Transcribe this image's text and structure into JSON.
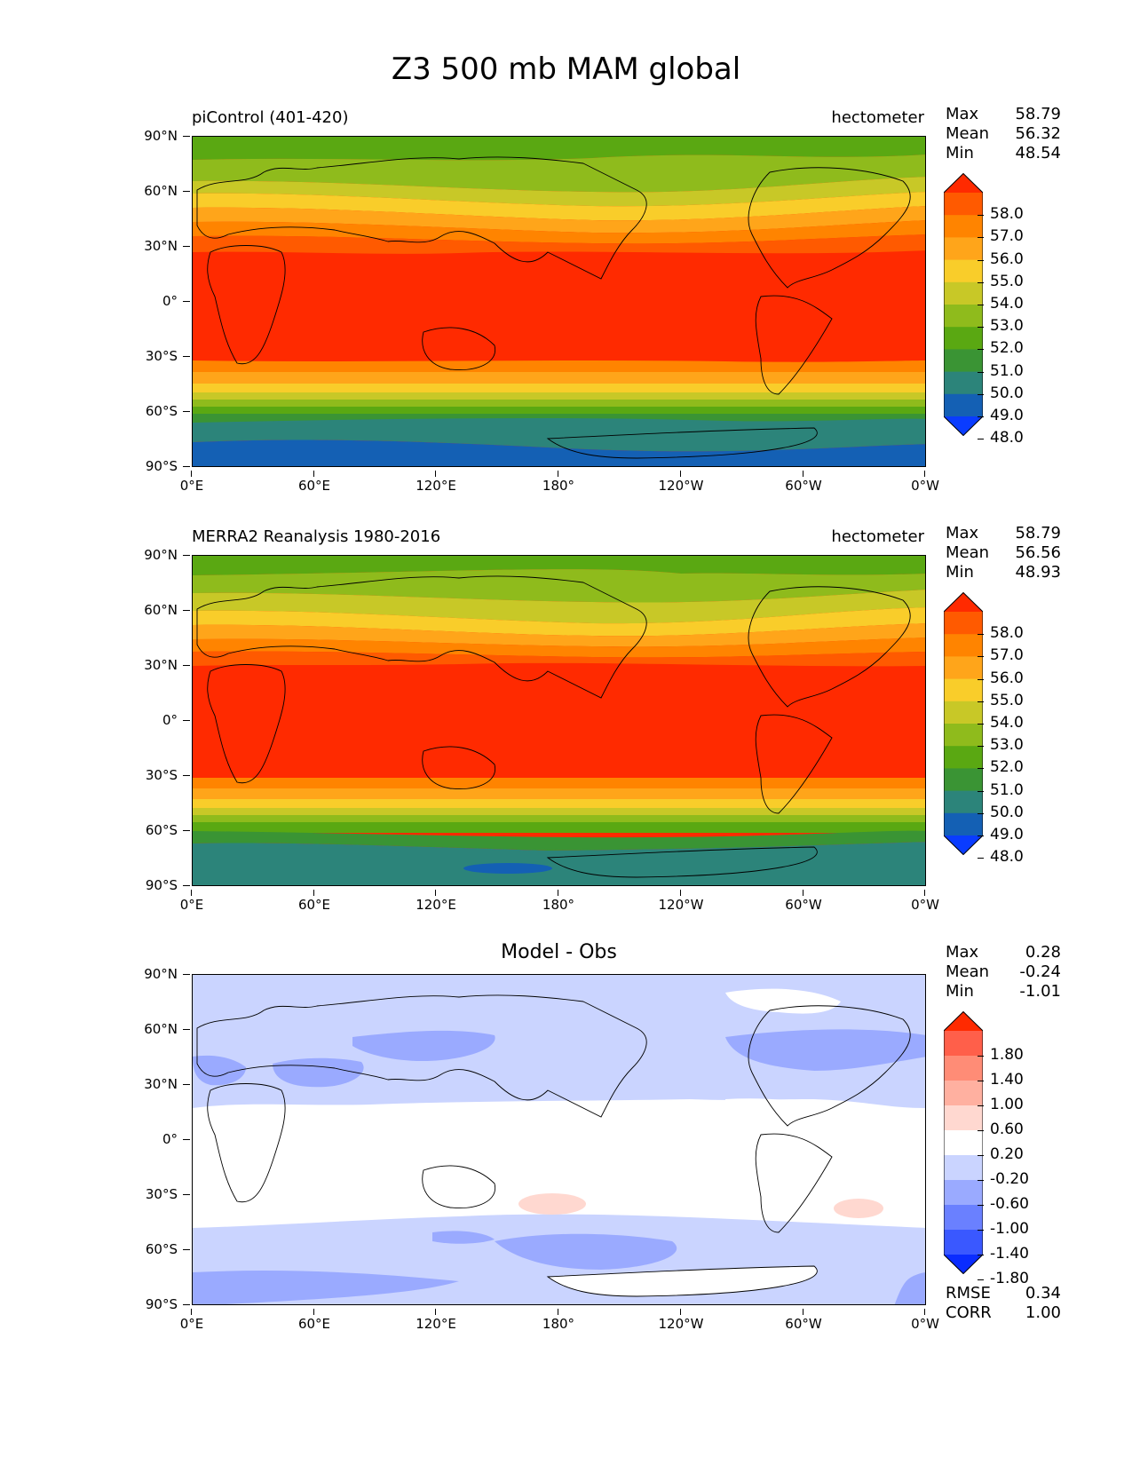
{
  "figure_title": "Z3 500 mb MAM global",
  "lat_labels": [
    "90°N",
    "60°N",
    "30°N",
    "0°",
    "30°S",
    "60°S",
    "90°S"
  ],
  "lon_labels": [
    "0°E",
    "60°E",
    "120°E",
    "180°",
    "120°W",
    "60°W",
    "0°W"
  ],
  "panels": [
    {
      "title_left": "piControl (401-420)",
      "title_right": "hectometer",
      "stats": {
        "max_label": "Max",
        "max": "58.79",
        "mean_label": "Mean",
        "mean": "56.32",
        "min_label": "Min",
        "min": "48.54"
      },
      "colorbar": {
        "labels": [
          "58.0",
          "57.0",
          "56.0",
          "55.0",
          "54.0",
          "53.0",
          "52.0",
          "51.0",
          "50.0",
          "49.0",
          "48.0"
        ],
        "colors": [
          "#ff2a00",
          "#ff5a00",
          "#ff8400",
          "#ffa51a",
          "#f9cd2a",
          "#c8c827",
          "#8fbb1c",
          "#5aa812",
          "#3a9434",
          "#2c847a",
          "#1460b4",
          "#0a3cff"
        ]
      }
    },
    {
      "title_left": "MERRA2 Reanalysis 1980-2016",
      "title_right": "hectometer",
      "stats": {
        "max_label": "Max",
        "max": "58.79",
        "mean_label": "Mean",
        "mean": "56.56",
        "min_label": "Min",
        "min": "48.93"
      },
      "colorbar": {
        "labels": [
          "58.0",
          "57.0",
          "56.0",
          "55.0",
          "54.0",
          "53.0",
          "52.0",
          "51.0",
          "50.0",
          "49.0",
          "48.0"
        ],
        "colors": [
          "#ff2a00",
          "#ff5a00",
          "#ff8400",
          "#ffa51a",
          "#f9cd2a",
          "#c8c827",
          "#8fbb1c",
          "#5aa812",
          "#3a9434",
          "#2c847a",
          "#1460b4",
          "#0a3cff"
        ]
      }
    },
    {
      "title_center": "Model - Obs",
      "stats": {
        "max_label": "Max",
        "max": "0.28",
        "mean_label": "Mean",
        "mean": "-0.24",
        "min_label": "Min",
        "min": "-1.01"
      },
      "colorbar": {
        "labels": [
          "1.80",
          "1.40",
          "1.00",
          "0.60",
          "0.20",
          "-0.20",
          "-0.60",
          "-1.00",
          "-1.40",
          "-1.80"
        ],
        "colors": [
          "#ff2a00",
          "#ff5f4a",
          "#ff8c76",
          "#ffb0a0",
          "#ffd8d0",
          "#ffffff",
          "#cad4ff",
          "#9aaaff",
          "#6a80ff",
          "#3a58ff",
          "#0a2cff"
        ]
      },
      "metrics": {
        "rmse_label": "RMSE",
        "rmse": "0.34",
        "corr_label": "CORR",
        "corr": "1.00"
      }
    }
  ]
}
